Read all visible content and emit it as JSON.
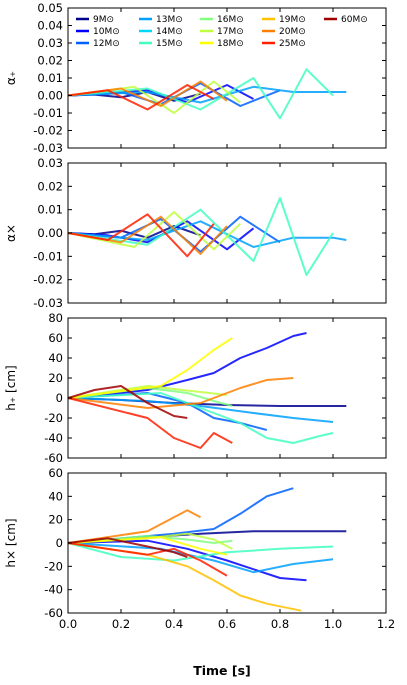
{
  "chart_data": {
    "type": "line",
    "xlabel": "Time [s]",
    "xlim": [
      0.0,
      1.2
    ],
    "xticks": [
      "0.0",
      "0.2",
      "0.4",
      "0.6",
      "0.8",
      "1.0",
      "1.2"
    ],
    "legend": {
      "placement": "top",
      "entries": [
        {
          "label": "9M⊙",
          "color": "#00008f"
        },
        {
          "label": "10M⊙",
          "color": "#0000ff"
        },
        {
          "label": "12M⊙",
          "color": "#0060ff"
        },
        {
          "label": "13M⊙",
          "color": "#00a0ff"
        },
        {
          "label": "14M⊙",
          "color": "#00d8ff"
        },
        {
          "label": "15M⊙",
          "color": "#40ffc0"
        },
        {
          "label": "16M⊙",
          "color": "#80ff80"
        },
        {
          "label": "17M⊙",
          "color": "#c0ff40"
        },
        {
          "label": "18M⊙",
          "color": "#ffff00"
        },
        {
          "label": "19M⊙",
          "color": "#ffc000"
        },
        {
          "label": "20M⊙",
          "color": "#ff8000"
        },
        {
          "label": "25M⊙",
          "color": "#ff2000"
        },
        {
          "label": "60M⊙",
          "color": "#a00000"
        }
      ]
    },
    "panels": [
      {
        "ylabel": "α₊",
        "ylim": [
          -0.03,
          0.05
        ],
        "yticks": [
          "0.05",
          "0.04",
          "0.03",
          "0.02",
          "0.01",
          "0.00",
          "-0.01",
          "-0.02",
          "-0.03"
        ],
        "series": [
          {
            "color": "#00008f",
            "x": [
              0.0,
              0.1,
              0.2,
              0.3,
              0.4,
              0.5
            ],
            "y": [
              0.0,
              0.0005,
              -0.001,
              0.002,
              -0.003,
              0.001
            ]
          },
          {
            "color": "#0000ff",
            "x": [
              0.0,
              0.15,
              0.3,
              0.45,
              0.6,
              0.7
            ],
            "y": [
              0.0,
              0.001,
              0.003,
              -0.004,
              0.006,
              -0.002
            ]
          },
          {
            "color": "#0060ff",
            "x": [
              0.0,
              0.2,
              0.35,
              0.5,
              0.65,
              0.8
            ],
            "y": [
              0.0,
              0.002,
              -0.005,
              0.007,
              -0.006,
              0.003
            ]
          },
          {
            "color": "#00a0ff",
            "x": [
              0.0,
              0.3,
              0.5,
              0.7,
              0.85,
              1.0,
              1.05
            ],
            "y": [
              0.0,
              0.002,
              -0.004,
              0.005,
              0.002,
              0.002,
              0.002
            ]
          },
          {
            "color": "#40ffc0",
            "x": [
              0.0,
              0.3,
              0.5,
              0.7,
              0.8,
              0.9,
              1.0
            ],
            "y": [
              0.0,
              0.004,
              -0.008,
              0.01,
              -0.013,
              0.015,
              0.0
            ]
          },
          {
            "color": "#c0ff40",
            "x": [
              0.0,
              0.25,
              0.4,
              0.55,
              0.65
            ],
            "y": [
              0.0,
              0.005,
              -0.01,
              0.008,
              -0.004
            ]
          },
          {
            "color": "#ff8000",
            "x": [
              0.0,
              0.2,
              0.35,
              0.5,
              0.6
            ],
            "y": [
              0.0,
              0.004,
              -0.006,
              0.008,
              -0.003
            ]
          },
          {
            "color": "#ff2000",
            "x": [
              0.0,
              0.15,
              0.3,
              0.45,
              0.55
            ],
            "y": [
              0.0,
              0.003,
              -0.008,
              0.006,
              -0.002
            ]
          }
        ]
      },
      {
        "ylabel": "α×",
        "ylim": [
          -0.03,
          0.03
        ],
        "yticks": [
          "0.03",
          "0.02",
          "0.01",
          "0.00",
          "-0.01",
          "-0.02",
          "-0.03"
        ],
        "series": [
          {
            "color": "#00008f",
            "x": [
              0.0,
              0.1,
              0.2,
              0.3,
              0.4,
              0.5
            ],
            "y": [
              0.0,
              -0.0005,
              0.001,
              -0.002,
              0.003,
              -0.001
            ]
          },
          {
            "color": "#0000ff",
            "x": [
              0.0,
              0.15,
              0.3,
              0.45,
              0.6,
              0.7
            ],
            "y": [
              0.0,
              -0.001,
              -0.004,
              0.005,
              -0.007,
              0.002
            ]
          },
          {
            "color": "#0060ff",
            "x": [
              0.0,
              0.2,
              0.35,
              0.5,
              0.65,
              0.8
            ],
            "y": [
              0.0,
              -0.002,
              0.006,
              -0.008,
              0.007,
              -0.004
            ]
          },
          {
            "color": "#00a0ff",
            "x": [
              0.0,
              0.3,
              0.5,
              0.7,
              0.85,
              1.0,
              1.05
            ],
            "y": [
              0.0,
              -0.003,
              0.005,
              -0.006,
              -0.002,
              -0.002,
              -0.003
            ]
          },
          {
            "color": "#40ffc0",
            "x": [
              0.0,
              0.3,
              0.5,
              0.7,
              0.8,
              0.9,
              1.0
            ],
            "y": [
              0.0,
              -0.005,
              0.01,
              -0.012,
              0.015,
              -0.018,
              0.0
            ]
          },
          {
            "color": "#c0ff40",
            "x": [
              0.0,
              0.25,
              0.4,
              0.55,
              0.65
            ],
            "y": [
              0.0,
              -0.006,
              0.009,
              -0.007,
              0.004
            ]
          },
          {
            "color": "#ff8000",
            "x": [
              0.0,
              0.2,
              0.35,
              0.5,
              0.6
            ],
            "y": [
              0.0,
              -0.004,
              0.007,
              -0.009,
              0.003
            ]
          },
          {
            "color": "#ff2000",
            "x": [
              0.0,
              0.15,
              0.3,
              0.45,
              0.55
            ],
            "y": [
              0.0,
              -0.003,
              0.008,
              -0.01,
              0.004
            ]
          }
        ]
      },
      {
        "ylabel": "h₊ [cm]",
        "ylim": [
          -60,
          80
        ],
        "yticks": [
          "80",
          "60",
          "40",
          "20",
          "0",
          "-20",
          "-40",
          "-60"
        ],
        "series": [
          {
            "color": "#00008f",
            "x": [
              0.0,
              0.2,
              0.4,
              0.6,
              0.8,
              1.0,
              1.05
            ],
            "y": [
              0,
              -2,
              -5,
              -7,
              -8,
              -8,
              -8
            ]
          },
          {
            "color": "#0000ff",
            "x": [
              0.0,
              0.3,
              0.45,
              0.55,
              0.65,
              0.75,
              0.85,
              0.9
            ],
            "y": [
              0,
              8,
              18,
              25,
              40,
              50,
              62,
              65
            ]
          },
          {
            "color": "#0060ff",
            "x": [
              0.0,
              0.3,
              0.45,
              0.55,
              0.65,
              0.75
            ],
            "y": [
              0,
              5,
              -5,
              -20,
              -25,
              -32
            ]
          },
          {
            "color": "#00a0ff",
            "x": [
              0.0,
              0.3,
              0.5,
              0.7,
              0.85,
              1.0
            ],
            "y": [
              0,
              -3,
              -8,
              -15,
              -20,
              -24
            ]
          },
          {
            "color": "#40ffc0",
            "x": [
              0.0,
              0.35,
              0.5,
              0.65,
              0.75,
              0.85,
              0.95,
              1.0
            ],
            "y": [
              0,
              5,
              -10,
              -25,
              -40,
              -45,
              -38,
              -35
            ]
          },
          {
            "color": "#80ff80",
            "x": [
              0.0,
              0.3,
              0.45,
              0.55,
              0.62
            ],
            "y": [
              0,
              10,
              5,
              -3,
              -8
            ]
          },
          {
            "color": "#c0ff40",
            "x": [
              0.0,
              0.3,
              0.5,
              0.6
            ],
            "y": [
              0,
              12,
              6,
              3
            ]
          },
          {
            "color": "#ffff00",
            "x": [
              0.0,
              0.35,
              0.45,
              0.55,
              0.62
            ],
            "y": [
              0,
              12,
              28,
              48,
              60
            ]
          },
          {
            "color": "#ff8000",
            "x": [
              0.0,
              0.3,
              0.5,
              0.65,
              0.75,
              0.85
            ],
            "y": [
              0,
              -10,
              -5,
              10,
              18,
              20
            ]
          },
          {
            "color": "#ff2000",
            "x": [
              0.0,
              0.3,
              0.4,
              0.5,
              0.55,
              0.62
            ],
            "y": [
              0,
              -20,
              -40,
              -50,
              -35,
              -45
            ]
          },
          {
            "color": "#a00000",
            "x": [
              0.0,
              0.1,
              0.2,
              0.3,
              0.4,
              0.45
            ],
            "y": [
              0,
              8,
              12,
              -5,
              -18,
              -20
            ]
          }
        ]
      },
      {
        "ylabel": "h× [cm]",
        "ylim": [
          -60,
          60
        ],
        "yticks": [
          "60",
          "40",
          "20",
          "0",
          "-20",
          "-40",
          "-60"
        ],
        "series": [
          {
            "color": "#00008f",
            "x": [
              0.0,
              0.3,
              0.5,
              0.7,
              0.9,
              1.05
            ],
            "y": [
              0,
              5,
              8,
              10,
              10,
              10
            ]
          },
          {
            "color": "#0000ff",
            "x": [
              0.0,
              0.3,
              0.45,
              0.6,
              0.8,
              0.9
            ],
            "y": [
              0,
              2,
              -5,
              -15,
              -30,
              -32
            ]
          },
          {
            "color": "#0060ff",
            "x": [
              0.0,
              0.4,
              0.55,
              0.65,
              0.75,
              0.85
            ],
            "y": [
              0,
              8,
              12,
              25,
              40,
              47
            ]
          },
          {
            "color": "#00a0ff",
            "x": [
              0.0,
              0.35,
              0.55,
              0.7,
              0.85,
              1.0
            ],
            "y": [
              0,
              -5,
              -15,
              -25,
              -18,
              -14
            ]
          },
          {
            "color": "#40ffc0",
            "x": [
              0.0,
              0.2,
              0.4,
              0.6,
              0.8,
              1.0
            ],
            "y": [
              0,
              -12,
              -15,
              -8,
              -5,
              -3
            ]
          },
          {
            "color": "#80ff80",
            "x": [
              0.0,
              0.3,
              0.45,
              0.55,
              0.62
            ],
            "y": [
              0,
              6,
              3,
              0,
              2
            ]
          },
          {
            "color": "#c0ff40",
            "x": [
              0.0,
              0.3,
              0.45,
              0.55,
              0.62
            ],
            "y": [
              0,
              4,
              8,
              3,
              -5
            ]
          },
          {
            "color": "#ffff00",
            "x": [
              0.0,
              0.35,
              0.5,
              0.6
            ],
            "y": [
              0,
              5,
              -5,
              -10
            ]
          },
          {
            "color": "#ffc000",
            "x": [
              0.0,
              0.3,
              0.45,
              0.55,
              0.65,
              0.75,
              0.88
            ],
            "y": [
              0,
              -10,
              -20,
              -32,
              -45,
              -52,
              -58
            ]
          },
          {
            "color": "#ff8000",
            "x": [
              0.0,
              0.3,
              0.4,
              0.45,
              0.5
            ],
            "y": [
              0,
              10,
              22,
              28,
              22
            ]
          },
          {
            "color": "#ff2000",
            "x": [
              0.0,
              0.3,
              0.4,
              0.5,
              0.6
            ],
            "y": [
              0,
              -10,
              -5,
              -15,
              -28
            ]
          },
          {
            "color": "#a00000",
            "x": [
              0.0,
              0.15,
              0.3,
              0.4,
              0.45
            ],
            "y": [
              0,
              4,
              -3,
              -8,
              -12
            ]
          }
        ]
      }
    ]
  }
}
